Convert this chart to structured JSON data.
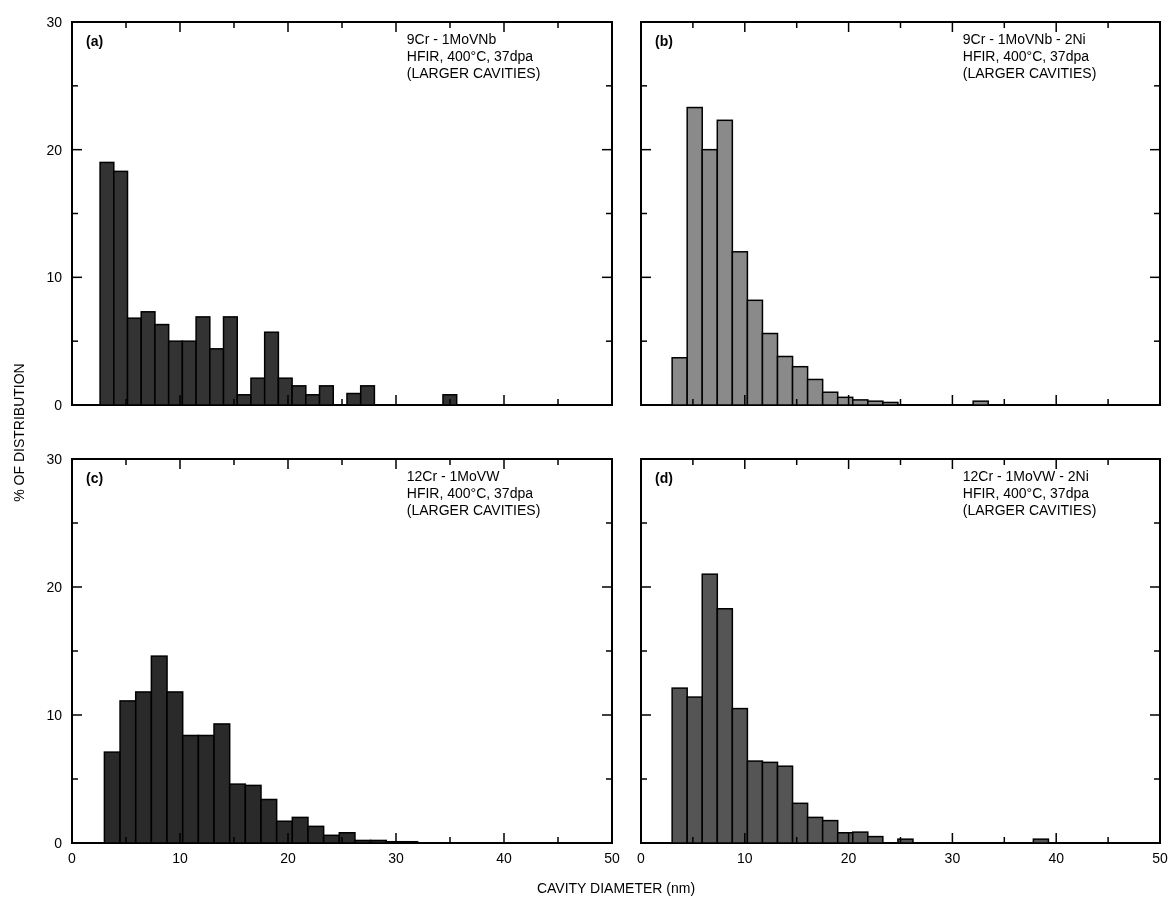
{
  "chart_data": [
    {
      "type": "histogram",
      "title": "(a)",
      "annotations": [
        "9Cr - 1MoVNb",
        "HFIR, 400°C, 37dpa",
        "(LARGER CAVITIES)"
      ],
      "ylabel": "% OF DISTRIBUTION",
      "color": "#333333",
      "bins": [
        2.6,
        3.87,
        5.14,
        6.41,
        7.68,
        8.95,
        10.22,
        11.49,
        12.76,
        14.03,
        15.3,
        16.57,
        17.84,
        19.11,
        20.38,
        21.65,
        22.92,
        24.19,
        25.46,
        26.73,
        28,
        29.27,
        30.54,
        31.81,
        33.08,
        34.35,
        35.62
      ],
      "values": [
        19,
        18.3,
        6.8,
        7.3,
        6.3,
        5,
        5,
        6.9,
        4.4,
        6.9,
        0.8,
        2.1,
        5.7,
        2.1,
        1.5,
        0.8,
        1.5,
        0,
        0.9,
        1.5,
        0,
        0,
        0,
        0,
        0,
        0.8
      ],
      "xlim": [
        0,
        50
      ],
      "ylim": [
        0,
        30
      ],
      "xticks": [
        0,
        {
          "value": 5,
          "label": null
        },
        10,
        {
          "value": 15,
          "label": null
        },
        20,
        {
          "value": 25,
          "label": null
        },
        30,
        {
          "value": 35,
          "label": null
        },
        40,
        {
          "value": 45,
          "label": null
        },
        50
      ],
      "yticks": [
        0,
        {
          "value": 5,
          "label": null
        },
        10,
        {
          "value": 15,
          "label": null
        },
        20,
        {
          "value": 25,
          "label": null
        },
        30
      ],
      "tick_labels": "y"
    },
    {
      "type": "histogram",
      "title": "(b)",
      "annotations": [
        "9Cr - 1MoVNb - 2Ni",
        "HFIR, 400°C, 37dpa",
        "(LARGER CAVITIES)"
      ],
      "color": "#8a8a8a",
      "bins": [
        3,
        4.45,
        5.9,
        7.35,
        8.8,
        10.25,
        11.7,
        13.15,
        14.6,
        16.05,
        17.5,
        18.95,
        20.4,
        21.85,
        23.3,
        24.75,
        26.2,
        27.65,
        29.1,
        30.55,
        32,
        33.45
      ],
      "values": [
        3.7,
        23.3,
        20,
        22.3,
        12,
        8.2,
        5.6,
        3.8,
        3,
        2,
        1,
        0.6,
        0.4,
        0.3,
        0.2,
        0,
        0,
        0,
        0,
        0,
        0.3
      ],
      "xlim": [
        0,
        50
      ],
      "ylim": [
        0,
        30
      ],
      "xticks": [
        0,
        {
          "value": 5,
          "label": null
        },
        10,
        {
          "value": 15,
          "label": null
        },
        20,
        {
          "value": 25,
          "label": null
        },
        30,
        {
          "value": 35,
          "label": null
        },
        40,
        {
          "value": 45,
          "label": null
        },
        50
      ],
      "yticks": [
        0,
        {
          "value": 5,
          "label": null
        },
        10,
        {
          "value": 15,
          "label": null
        },
        20,
        {
          "value": 25,
          "label": null
        },
        30
      ],
      "tick_labels": false
    },
    {
      "type": "histogram",
      "title": "(c)",
      "annotations": [
        "12Cr - 1MoVW",
        "HFIR, 400°C, 37dpa",
        "(LARGER CAVITIES)"
      ],
      "xlabel": "CAVITY DIAMETER (nm)",
      "color": "#2a2a2a",
      "bins": [
        3,
        4.45,
        5.9,
        7.35,
        8.8,
        10.25,
        11.7,
        13.15,
        14.6,
        16.05,
        17.5,
        18.95,
        20.4,
        21.85,
        23.3,
        24.75,
        26.2,
        27.65,
        29.1,
        30.55,
        32
      ],
      "values": [
        7.1,
        11.1,
        11.8,
        14.6,
        11.8,
        8.4,
        8.4,
        9.3,
        4.6,
        4.5,
        3.4,
        1.7,
        2,
        1.3,
        0.6,
        0.8,
        0.2,
        0.2,
        0.1,
        0.1
      ],
      "xlim": [
        0,
        50
      ],
      "ylim": [
        0,
        30
      ],
      "xticks": [
        0,
        {
          "value": 5,
          "label": null
        },
        10,
        {
          "value": 15,
          "label": null
        },
        20,
        {
          "value": 25,
          "label": null
        },
        30,
        {
          "value": 35,
          "label": null
        },
        40,
        {
          "value": 45,
          "label": null
        },
        50
      ],
      "yticks": [
        0,
        {
          "value": 5,
          "label": null
        },
        10,
        {
          "value": 15,
          "label": null
        },
        20,
        {
          "value": 25,
          "label": null
        },
        30
      ]
    },
    {
      "type": "histogram",
      "title": "(d)",
      "annotations": [
        "12Cr - 1MoVW - 2Ni",
        "HFIR, 400°C, 37dpa",
        "(LARGER CAVITIES)"
      ],
      "color": "#555555",
      "bins": [
        3,
        4.45,
        5.9,
        7.35,
        8.8,
        10.25,
        11.7,
        13.15,
        14.6,
        16.05,
        17.5,
        18.95,
        20.4,
        21.85,
        23.3,
        24.75,
        26.2,
        27.65,
        29.1,
        30.55,
        32,
        33.45,
        34.9,
        36.35,
        37.8,
        39.25
      ],
      "values": [
        12.1,
        11.4,
        21,
        18.3,
        10.5,
        6.4,
        6.3,
        6,
        3.1,
        2,
        1.75,
        0.8,
        0.85,
        0.5,
        0,
        0.3,
        0,
        0,
        0,
        0,
        0,
        0,
        0,
        0,
        0.3
      ],
      "xlim": [
        0,
        50
      ],
      "ylim": [
        0,
        30
      ],
      "xticks": [
        0,
        {
          "value": 5,
          "label": null
        },
        10,
        {
          "value": 15,
          "label": null
        },
        20,
        {
          "value": 25,
          "label": null
        },
        30,
        {
          "value": 35,
          "label": null
        },
        40,
        {
          "value": 45,
          "label": null
        },
        50
      ],
      "yticks": [
        0,
        {
          "value": 5,
          "label": null
        },
        10,
        {
          "value": 15,
          "label": null
        },
        20,
        {
          "value": 25,
          "label": null
        },
        30
      ],
      "tick_labels": "x"
    }
  ]
}
